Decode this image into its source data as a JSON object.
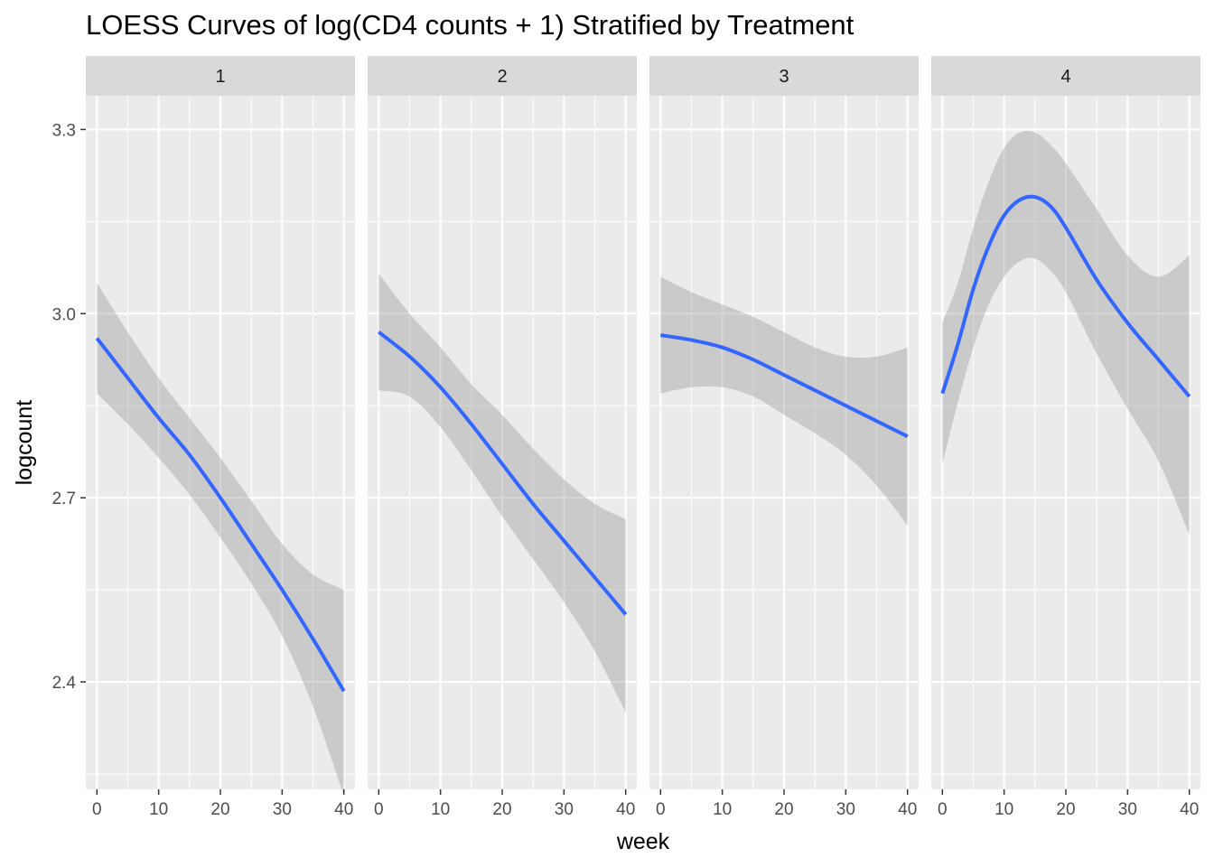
{
  "chart_data": {
    "type": "line",
    "title": "LOESS Curves of log(CD4 counts + 1) Stratified by Treatment",
    "xlabel": "week",
    "ylabel": "logcount",
    "xlim": [
      -1.8,
      41.8
    ],
    "ylim": [
      2.225,
      3.355
    ],
    "x_ticks": [
      0,
      10,
      20,
      30,
      40
    ],
    "x_tick_labels": [
      "0",
      "10",
      "20",
      "30",
      "40"
    ],
    "y_ticks": [
      2.4,
      2.7,
      3.0,
      3.3
    ],
    "y_tick_labels": [
      "2.4",
      "2.7",
      "3.0",
      "3.3"
    ],
    "grid": true,
    "line_color": "#3366FF",
    "ribbon_color": "#999999",
    "panel_background": "#EBEBEB",
    "strip_background": "#D9D9D9",
    "panels": [
      {
        "label": "1",
        "x": [
          0,
          5,
          10,
          15,
          20,
          25,
          30,
          35,
          40
        ],
        "y": [
          2.96,
          2.895,
          2.83,
          2.77,
          2.7,
          2.625,
          2.55,
          2.47,
          2.385
        ],
        "ymin": [
          2.87,
          2.82,
          2.765,
          2.705,
          2.635,
          2.56,
          2.475,
          2.36,
          2.215
        ],
        "ymax": [
          3.05,
          2.97,
          2.895,
          2.83,
          2.765,
          2.695,
          2.625,
          2.575,
          2.55
        ]
      },
      {
        "label": "2",
        "x": [
          0,
          5,
          10,
          15,
          20,
          25,
          30,
          35,
          40
        ],
        "y": [
          2.97,
          2.93,
          2.88,
          2.82,
          2.755,
          2.69,
          2.63,
          2.57,
          2.51
        ],
        "ymin": [
          2.875,
          2.865,
          2.815,
          2.745,
          2.67,
          2.6,
          2.53,
          2.45,
          2.35
        ],
        "ymax": [
          3.065,
          3.0,
          2.945,
          2.885,
          2.835,
          2.78,
          2.73,
          2.69,
          2.665
        ]
      },
      {
        "label": "3",
        "x": [
          0,
          5,
          10,
          15,
          20,
          25,
          30,
          35,
          40
        ],
        "y": [
          2.965,
          2.957,
          2.945,
          2.925,
          2.9,
          2.875,
          2.85,
          2.825,
          2.8
        ],
        "ymin": [
          2.87,
          2.88,
          2.88,
          2.865,
          2.835,
          2.805,
          2.77,
          2.72,
          2.655
        ],
        "ymax": [
          3.06,
          3.035,
          3.015,
          2.995,
          2.97,
          2.945,
          2.93,
          2.93,
          2.945
        ]
      },
      {
        "label": "4",
        "x": [
          0,
          2.5,
          5,
          7.5,
          10,
          12.5,
          15,
          17.5,
          20,
          25,
          30,
          35,
          40
        ],
        "y": [
          2.87,
          2.95,
          3.04,
          3.11,
          3.16,
          3.185,
          3.19,
          3.175,
          3.14,
          3.055,
          2.985,
          2.925,
          2.865
        ],
        "ymin": [
          2.755,
          2.855,
          2.945,
          3.015,
          3.06,
          3.085,
          3.09,
          3.07,
          3.035,
          2.935,
          2.845,
          2.76,
          2.64
        ],
        "ymax": [
          2.985,
          3.05,
          3.14,
          3.215,
          3.27,
          3.295,
          3.295,
          3.275,
          3.245,
          3.17,
          3.095,
          3.06,
          3.095
        ]
      }
    ]
  }
}
